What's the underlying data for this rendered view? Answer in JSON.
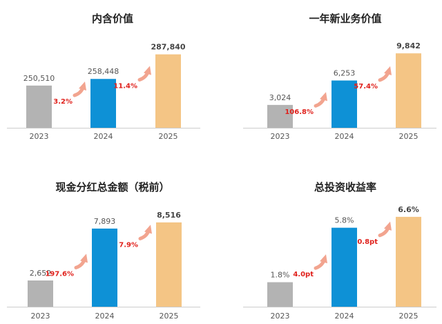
{
  "chart_data": [
    {
      "type": "bar",
      "title": "内含价值",
      "categories": [
        "2023",
        "2024",
        "2025"
      ],
      "values": [
        250510,
        258448,
        287840
      ],
      "value_labels": [
        "250,510",
        "258,448",
        "287,840"
      ],
      "growth_labels": [
        "3.2%",
        "11.4%"
      ],
      "ylim": [
        200000,
        295000
      ],
      "colors": [
        "#b3b3b3",
        "#0e91d6",
        "#f4c585"
      ]
    },
    {
      "type": "bar",
      "title": "一年新业务价值",
      "categories": [
        "2023",
        "2024",
        "2025"
      ],
      "values": [
        3024,
        6253,
        9842
      ],
      "value_labels": [
        "3,024",
        "6,253",
        "9,842"
      ],
      "growth_labels": [
        "106.8%",
        "57.4%"
      ],
      "ylim": [
        0,
        10500
      ],
      "colors": [
        "#b3b3b3",
        "#0e91d6",
        "#f4c585"
      ]
    },
    {
      "type": "bar",
      "title": "现金分红总金额（税前）",
      "categories": [
        "2023",
        "2024",
        "2025"
      ],
      "values": [
        2652,
        7893,
        8516
      ],
      "value_labels": [
        "2,652",
        "7,893",
        "8,516"
      ],
      "growth_labels": [
        "197.6%",
        "7.9%"
      ],
      "ylim": [
        0,
        9000
      ],
      "colors": [
        "#b3b3b3",
        "#0e91d6",
        "#f4c585"
      ]
    },
    {
      "type": "bar",
      "title": "总投资收益率",
      "categories": [
        "2023",
        "2024",
        "2025"
      ],
      "values": [
        1.8,
        5.8,
        6.6
      ],
      "value_labels": [
        "1.8%",
        "5.8%",
        "6.6%"
      ],
      "growth_labels": [
        "4.0pt",
        "0.8pt"
      ],
      "ylim": [
        0,
        7.0
      ],
      "colors": [
        "#b3b3b3",
        "#0e91d6",
        "#f4c585"
      ]
    }
  ],
  "style": {
    "title_color": "#222222",
    "label_color": "#555555",
    "last_label_color": "#444444",
    "growth_color": "#e0211c",
    "arrow_color": "#f2a48f",
    "axis_color": "#cccccc"
  }
}
